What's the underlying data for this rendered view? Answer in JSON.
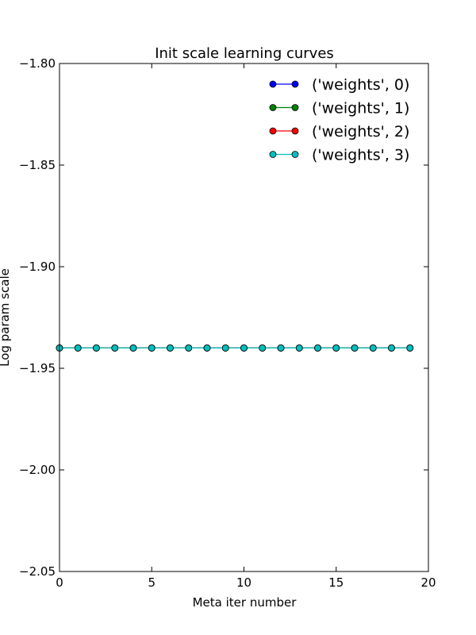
{
  "chart_data": {
    "type": "line",
    "title": "Init scale learning curves",
    "xlabel": "Meta iter number",
    "ylabel": "Log param scale",
    "xlim": [
      0,
      20
    ],
    "ylim": [
      -2.05,
      -1.8
    ],
    "xticks": [
      0,
      5,
      10,
      15,
      20
    ],
    "xtick_labels": [
      "0",
      "5",
      "10",
      "15",
      "20"
    ],
    "yticks": [
      -2.05,
      -2.0,
      -1.95,
      -1.9,
      -1.85,
      -1.8
    ],
    "ytick_labels": [
      "−2.05",
      "−2.00",
      "−1.95",
      "−1.90",
      "−1.85",
      "−1.80"
    ],
    "grid": false,
    "legend_position": "top-right",
    "x": [
      0,
      1,
      2,
      3,
      4,
      5,
      6,
      7,
      8,
      9,
      10,
      11,
      12,
      13,
      14,
      15,
      16,
      17,
      18,
      19
    ],
    "series": [
      {
        "name": "('weights', 0)",
        "color": "#0000ff",
        "values": [
          -1.94,
          -1.94,
          -1.94,
          -1.94,
          -1.94,
          -1.94,
          -1.94,
          -1.94,
          -1.94,
          -1.94,
          -1.94,
          -1.94,
          -1.94,
          -1.94,
          -1.94,
          -1.94,
          -1.94,
          -1.94,
          -1.94,
          -1.94
        ]
      },
      {
        "name": "('weights', 1)",
        "color": "#008000",
        "values": [
          -1.94,
          -1.94,
          -1.94,
          -1.94,
          -1.94,
          -1.94,
          -1.94,
          -1.94,
          -1.94,
          -1.94,
          -1.94,
          -1.94,
          -1.94,
          -1.94,
          -1.94,
          -1.94,
          -1.94,
          -1.94,
          -1.94,
          -1.94
        ]
      },
      {
        "name": "('weights', 2)",
        "color": "#ff0000",
        "values": [
          -1.94,
          -1.94,
          -1.94,
          -1.94,
          -1.94,
          -1.94,
          -1.94,
          -1.94,
          -1.94,
          -1.94,
          -1.94,
          -1.94,
          -1.94,
          -1.94,
          -1.94,
          -1.94,
          -1.94,
          -1.94,
          -1.94,
          -1.94
        ]
      },
      {
        "name": "('weights', 3)",
        "color": "#00bfbf",
        "values": [
          -1.94,
          -1.94,
          -1.94,
          -1.94,
          -1.94,
          -1.94,
          -1.94,
          -1.94,
          -1.94,
          -1.94,
          -1.94,
          -1.94,
          -1.94,
          -1.94,
          -1.94,
          -1.94,
          -1.94,
          -1.94,
          -1.94,
          -1.94
        ]
      }
    ]
  }
}
